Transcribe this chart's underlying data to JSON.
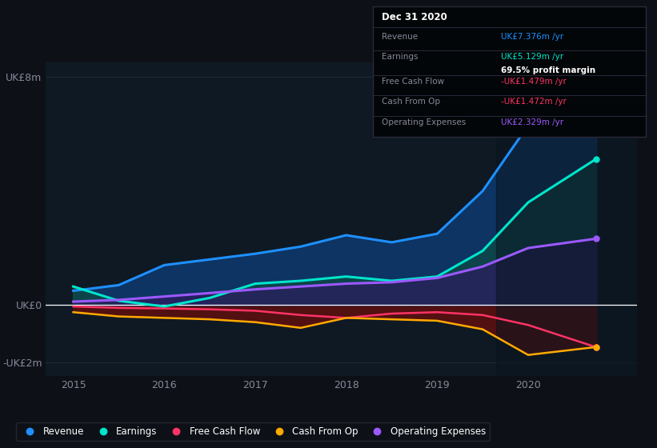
{
  "background_color": "#0d1117",
  "plot_bg_color": "#0f1923",
  "years": [
    2015.0,
    2015.5,
    2016.0,
    2016.5,
    2017.0,
    2017.5,
    2018.0,
    2018.5,
    2019.0,
    2019.5,
    2020.0,
    2020.75
  ],
  "revenue": [
    0.5,
    0.7,
    1.4,
    1.6,
    1.8,
    2.05,
    2.45,
    2.2,
    2.5,
    4.0,
    6.3,
    7.376
  ],
  "earnings": [
    0.65,
    0.15,
    -0.05,
    0.25,
    0.75,
    0.85,
    1.0,
    0.85,
    1.0,
    1.9,
    3.6,
    5.129
  ],
  "free_cash_flow": [
    -0.05,
    -0.1,
    -0.12,
    -0.15,
    -0.2,
    -0.35,
    -0.45,
    -0.3,
    -0.25,
    -0.35,
    -0.7,
    -1.479
  ],
  "cash_from_op": [
    -0.25,
    -0.4,
    -0.45,
    -0.5,
    -0.6,
    -0.8,
    -0.45,
    -0.5,
    -0.55,
    -0.85,
    -1.75,
    -1.472
  ],
  "op_expenses": [
    0.12,
    0.18,
    0.3,
    0.42,
    0.55,
    0.65,
    0.75,
    0.8,
    0.95,
    1.35,
    2.0,
    2.329
  ],
  "revenue_color": "#1e90ff",
  "earnings_color": "#00e5cc",
  "free_cash_flow_color": "#ff3366",
  "cash_from_op_color": "#ffaa00",
  "op_expenses_color": "#9b59ff",
  "revenue_fill_color": "#0d3a6e",
  "earnings_fill_color": "#0d4a44",
  "op_expenses_fill_color": "#2d1a5e",
  "negative_fill_color": "#5a1010",
  "ylim": [
    -2.5,
    8.5
  ],
  "ytick_labels": [
    "-UK£2m",
    "UK£0",
    "UK£8m"
  ],
  "ytick_values": [
    -2,
    0,
    8
  ],
  "xlabel_color": "#888899",
  "ylabel_color": "#888899",
  "grid_color": "#1e2d3d",
  "tooltip_title": "Dec 31 2020",
  "tooltip_rows": [
    {
      "label": "Revenue",
      "value": "UK£7.376m /yr",
      "val_color": "#1e90ff",
      "sub": null
    },
    {
      "label": "Earnings",
      "value": "UK£5.129m /yr",
      "val_color": "#00e5cc",
      "sub": "69.5% profit margin"
    },
    {
      "label": "Free Cash Flow",
      "value": "-UK£1.479m /yr",
      "val_color": "#ff3366",
      "sub": null
    },
    {
      "label": "Cash From Op",
      "value": "-UK£1.472m /yr",
      "val_color": "#ff3366",
      "sub": null
    },
    {
      "label": "Operating Expenses",
      "value": "UK£2.329m /yr",
      "val_color": "#9b59ff",
      "sub": null
    }
  ],
  "legend_labels": [
    "Revenue",
    "Earnings",
    "Free Cash Flow",
    "Cash From Op",
    "Operating Expenses"
  ],
  "legend_colors": [
    "#1e90ff",
    "#00e5cc",
    "#ff3366",
    "#ffaa00",
    "#9b59ff"
  ],
  "dark_overlay_start": 2019.65,
  "xlim_left": 2014.7,
  "xlim_right": 2021.2
}
